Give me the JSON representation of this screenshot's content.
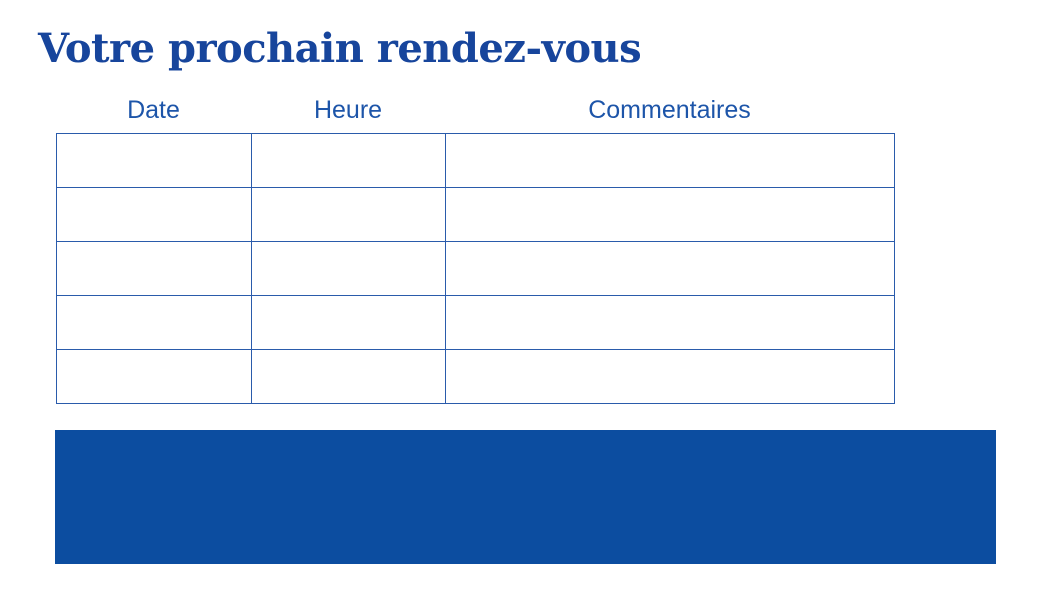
{
  "title": {
    "text": "Votre prochain rendez-vous",
    "color": "#17459c"
  },
  "table": {
    "columns": [
      {
        "label": "Date"
      },
      {
        "label": "Heure"
      },
      {
        "label": "Commentaires"
      }
    ],
    "header_text_color": "#1d55a9",
    "border_color": "#2a5bab",
    "rows": [
      {
        "date": "",
        "heure": "",
        "commentaires": ""
      },
      {
        "date": "",
        "heure": "",
        "commentaires": ""
      },
      {
        "date": "",
        "heure": "",
        "commentaires": ""
      },
      {
        "date": "",
        "heure": "",
        "commentaires": ""
      },
      {
        "date": "",
        "heure": "",
        "commentaires": ""
      }
    ]
  },
  "footer_bar": {
    "color": "#0c4da0"
  }
}
